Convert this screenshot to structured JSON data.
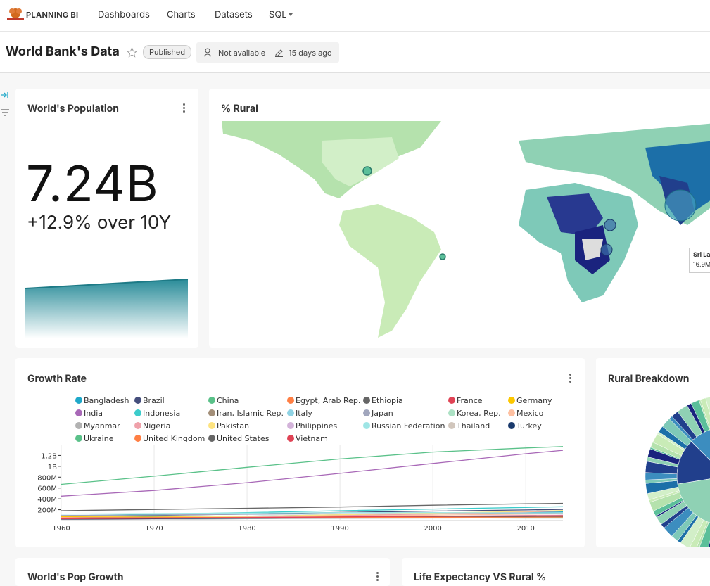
{
  "nav": {
    "brand": "PLANNING BI",
    "items": [
      "Dashboards",
      "Charts",
      "Datasets",
      "SQL"
    ]
  },
  "header": {
    "title": "World Bank's Data",
    "status": "Published",
    "owner": "Not available",
    "modified": "15 days ago"
  },
  "cards": {
    "population": {
      "title": "World's Population",
      "value": "7.24B",
      "subtitle": "+12.9% over 10Y"
    },
    "map": {
      "title": "% Rural",
      "tooltip_name": "Sri Lanka",
      "tooltip_value": "16.9M"
    },
    "breakdown": {
      "title": "Rural Breakdown"
    },
    "pop_growth": {
      "title": "World's Pop Growth"
    },
    "life": {
      "title": "Life Expectancy VS Rural %"
    }
  },
  "chart_data": {
    "type": "line",
    "title": "Growth Rate",
    "x": [
      1960,
      1970,
      1980,
      1990,
      2000,
      2010,
      2014
    ],
    "xlim": [
      1960,
      2014
    ],
    "xticks": [
      1960,
      1970,
      1980,
      1990,
      2000,
      2010
    ],
    "ylim": [
      0,
      1400000000
    ],
    "yticks": [
      {
        "value": 200000000,
        "label": "200M"
      },
      {
        "value": 400000000,
        "label": "400M"
      },
      {
        "value": 600000000,
        "label": "600M"
      },
      {
        "value": 800000000,
        "label": "800M"
      },
      {
        "value": 1000000000,
        "label": "1B"
      },
      {
        "value": 1200000000,
        "label": "1.2B"
      }
    ],
    "series": [
      {
        "name": "Bangladesh",
        "color": "#1FA8C9",
        "values": [
          48000000,
          65000000,
          80000000,
          106000000,
          132000000,
          152000000,
          159000000
        ]
      },
      {
        "name": "Brazil",
        "color": "#454E7C",
        "values": [
          72000000,
          96000000,
          121000000,
          150000000,
          175000000,
          196000000,
          206000000
        ]
      },
      {
        "name": "China",
        "color": "#5AC189",
        "values": [
          667000000,
          818000000,
          981000000,
          1135000000,
          1263000000,
          1338000000,
          1364000000
        ]
      },
      {
        "name": "Egypt, Arab Rep.",
        "color": "#FF7F44",
        "values": [
          27000000,
          35000000,
          44000000,
          57000000,
          68000000,
          82000000,
          89000000
        ]
      },
      {
        "name": "Ethiopia",
        "color": "#666666",
        "values": [
          22000000,
          29000000,
          35000000,
          48000000,
          66000000,
          88000000,
          97000000
        ]
      },
      {
        "name": "France",
        "color": "#E04355",
        "values": [
          46000000,
          51000000,
          54000000,
          58000000,
          61000000,
          65000000,
          66000000
        ]
      },
      {
        "name": "Germany",
        "color": "#FCC700",
        "values": [
          73000000,
          78000000,
          78000000,
          79000000,
          82000000,
          82000000,
          81000000
        ]
      },
      {
        "name": "India",
        "color": "#A868B7",
        "values": [
          450000000,
          555000000,
          699000000,
          870000000,
          1053000000,
          1231000000,
          1295000000
        ]
      },
      {
        "name": "Indonesia",
        "color": "#3CCCCB",
        "values": [
          88000000,
          115000000,
          148000000,
          181000000,
          212000000,
          242000000,
          255000000
        ]
      },
      {
        "name": "Iran, Islamic Rep.",
        "color": "#A38F79",
        "values": [
          22000000,
          29000000,
          39000000,
          56000000,
          66000000,
          74000000,
          78000000
        ]
      },
      {
        "name": "Italy",
        "color": "#8FD3E4",
        "values": [
          50000000,
          54000000,
          56000000,
          57000000,
          57000000,
          59000000,
          61000000
        ]
      },
      {
        "name": "Japan",
        "color": "#A1A6BD",
        "values": [
          93000000,
          104000000,
          117000000,
          124000000,
          127000000,
          128000000,
          127000000
        ]
      },
      {
        "name": "Korea, Rep.",
        "color": "#ACE1C4",
        "values": [
          25000000,
          32000000,
          38000000,
          43000000,
          47000000,
          50000000,
          50000000
        ]
      },
      {
        "name": "Mexico",
        "color": "#FEC0A1",
        "values": [
          38000000,
          51000000,
          68000000,
          84000000,
          101000000,
          118000000,
          125000000
        ]
      },
      {
        "name": "Myanmar",
        "color": "#B2B2B2",
        "values": [
          21000000,
          27000000,
          34000000,
          42000000,
          46000000,
          50000000,
          53000000
        ]
      },
      {
        "name": "Nigeria",
        "color": "#EFA1AA",
        "values": [
          45000000,
          56000000,
          73000000,
          95000000,
          122000000,
          159000000,
          177000000
        ]
      },
      {
        "name": "Pakistan",
        "color": "#FDE380",
        "values": [
          45000000,
          58000000,
          78000000,
          107000000,
          138000000,
          170000000,
          185000000
        ]
      },
      {
        "name": "Philippines",
        "color": "#D3B3DA",
        "values": [
          26000000,
          35000000,
          47000000,
          62000000,
          78000000,
          94000000,
          99000000
        ]
      },
      {
        "name": "Russian Federation",
        "color": "#9EE5E5",
        "values": [
          120000000,
          130000000,
          139000000,
          148000000,
          147000000,
          143000000,
          144000000
        ]
      },
      {
        "name": "Thailand",
        "color": "#D1C6BC",
        "values": [
          27000000,
          36000000,
          47000000,
          57000000,
          63000000,
          67000000,
          68000000
        ]
      },
      {
        "name": "Turkey",
        "color": "#1A3A6C",
        "values": [
          27000000,
          35000000,
          44000000,
          54000000,
          64000000,
          72000000,
          77000000
        ]
      },
      {
        "name": "Ukraine",
        "color": "#5AC189",
        "values": [
          43000000,
          47000000,
          50000000,
          52000000,
          49000000,
          46000000,
          45000000
        ]
      },
      {
        "name": "United Kingdom",
        "color": "#FF7F44",
        "values": [
          52000000,
          56000000,
          56000000,
          57000000,
          59000000,
          63000000,
          65000000
        ]
      },
      {
        "name": "United States",
        "color": "#666666",
        "values": [
          181000000,
          205000000,
          227000000,
          250000000,
          282000000,
          309000000,
          318000000
        ]
      },
      {
        "name": "Vietnam",
        "color": "#E04355",
        "values": [
          32000000,
          43000000,
          54000000,
          68000000,
          80000000,
          87000000,
          91000000
        ]
      }
    ]
  }
}
